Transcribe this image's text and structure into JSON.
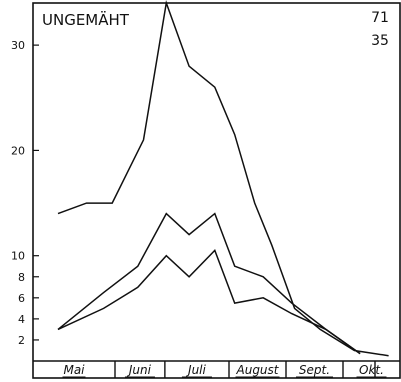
{
  "chart_data": {
    "type": "line",
    "title": "UNGEMÄHT",
    "corner_labels": [
      "71",
      "35"
    ],
    "xlabel": "",
    "ylabel": "",
    "ylim": [
      0,
      34
    ],
    "yticks": [
      2,
      4,
      6,
      8,
      10,
      20,
      30
    ],
    "ytick_labels": [
      "2",
      "4",
      "6",
      "8",
      "10",
      "20",
      "30"
    ],
    "xlim": [
      0,
      12
    ],
    "month_labels": [
      "Mai",
      "Juni",
      "Juli",
      "August",
      "Sept.",
      "Okt.",
      ""
    ],
    "month_bounds": [
      0,
      2,
      3.75,
      6,
      8,
      10,
      12
    ],
    "grid": false,
    "series": [
      {
        "x": [
          0,
          1,
          1.9,
          3,
          3.8,
          4.6,
          5.5,
          6.2,
          6.9,
          7.5,
          8.3,
          9.2,
          10.4,
          11.6
        ],
        "values": [
          14,
          15,
          15,
          21,
          34,
          28,
          26,
          21.5,
          15,
          11,
          5,
          3,
          1,
          0.5
        ]
      },
      {
        "x": [
          0,
          1.6,
          2.8,
          3.8,
          4.6,
          5.5,
          6.2,
          7.2,
          8.2,
          9.4,
          10.6
        ],
        "values": [
          3,
          6.5,
          9,
          14,
          12,
          14,
          9,
          8,
          5.5,
          3,
          0.7
        ]
      },
      {
        "x": [
          0,
          1.6,
          2.8,
          3.8,
          4.6,
          5.5,
          6.2,
          7.2,
          8.2,
          9.4,
          10.6
        ],
        "values": [
          3,
          5,
          7,
          10,
          8,
          10.5,
          5.5,
          6,
          4.5,
          3,
          0.7
        ]
      }
    ]
  }
}
